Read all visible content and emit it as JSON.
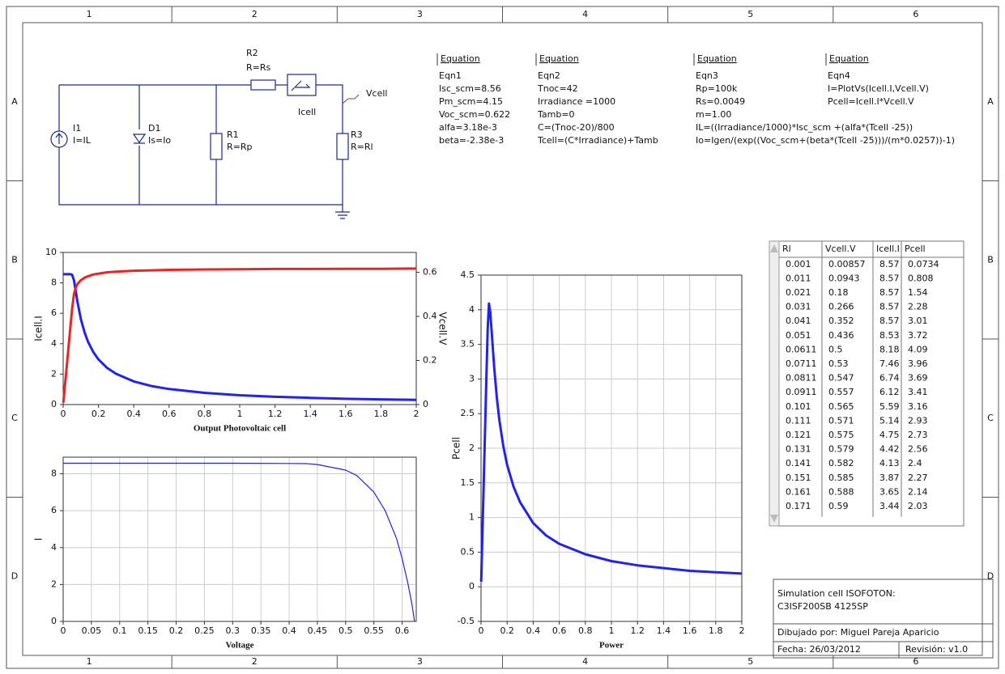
{
  "frame": {
    "columns": [
      "1",
      "2",
      "3",
      "4",
      "5",
      "6"
    ],
    "rows": [
      "A",
      "B",
      "C",
      "D"
    ]
  },
  "schematic": {
    "r2": {
      "name": "R2",
      "value": "R=Rs"
    },
    "ammeter": {
      "name": "Icell"
    },
    "probe": {
      "name": "Vcell"
    },
    "i1": {
      "name": "I1",
      "value": "I=IL"
    },
    "d1": {
      "name": "D1",
      "value": "Is=Io"
    },
    "r1": {
      "name": "R1",
      "value": "R=Rp"
    },
    "r3": {
      "name": "R3",
      "value": "R=Rl"
    }
  },
  "equations": [
    {
      "header": "Equation",
      "name": "Eqn1",
      "lines": [
        "Isc_scm=8.56",
        "Pm_scm=4.15",
        "Voc_scm=0.622",
        "alfa=3.18e-3",
        "beta=-2.38e-3"
      ]
    },
    {
      "header": "Equation",
      "name": "Eqn2",
      "lines": [
        "Tnoc=42",
        "Irradiance =1000",
        "Tamb=0",
        "C=(Tnoc-20)/800",
        "Tcell=(C*Irradiance)+Tamb"
      ]
    },
    {
      "header": "Equation",
      "name": "Eqn3",
      "lines": [
        "Rp=100k",
        "Rs=0.0049",
        "m=1.00",
        "IL=((Irradiance/1000)*Isc_scm +(alfa*(Tcell -25))",
        "Io=Igen/(exp((Voc_scm+(beta*(Tcell -25)))/(m*0.0257))-1)"
      ]
    },
    {
      "header": "Equation",
      "name": "Eqn4",
      "lines": [
        "I=PlotVs(Icell.I,Vcell.V)",
        "Pcell=Icell.I*Vcell.V"
      ]
    }
  ],
  "chart_data": [
    {
      "type": "line",
      "xlabel": "Output Photovoltaic cell",
      "ylabel": "Icell.I",
      "y2label": "Vcell.V",
      "x": [
        0.001,
        0.021,
        0.041,
        0.051,
        0.0611,
        0.0711,
        0.0811,
        0.101,
        0.121,
        0.141,
        0.171,
        0.2,
        0.25,
        0.3,
        0.4,
        0.5,
        0.6,
        0.8,
        1,
        1.2,
        1.4,
        1.6,
        1.8,
        2
      ],
      "series": [
        {
          "name": "Icell.I",
          "color": "#2222ee",
          "values": [
            8.57,
            8.57,
            8.57,
            8.53,
            8.18,
            7.46,
            6.74,
            5.59,
            4.75,
            4.13,
            3.44,
            2.97,
            2.4,
            2.02,
            1.52,
            1.22,
            1.02,
            0.77,
            0.61,
            0.51,
            0.44,
            0.38,
            0.34,
            0.31
          ]
        },
        {
          "name": "Vcell.V",
          "color": "#ee2222",
          "axis": "y2",
          "values": [
            0.00857,
            0.18,
            0.352,
            0.436,
            0.5,
            0.53,
            0.547,
            0.565,
            0.575,
            0.582,
            0.59,
            0.594,
            0.6,
            0.603,
            0.607,
            0.609,
            0.611,
            0.613,
            0.614,
            0.615,
            0.615,
            0.616,
            0.616,
            0.617
          ]
        }
      ],
      "xlim": [
        0,
        2
      ],
      "xticks": [
        0,
        0.2,
        0.4,
        0.6,
        0.8,
        1,
        1.2,
        1.4,
        1.6,
        1.8,
        2
      ],
      "ylim": [
        0,
        10
      ],
      "yticks": [
        0,
        2,
        4,
        6,
        8,
        10
      ],
      "y2lim": [
        0,
        0.69
      ],
      "y2ticks": [
        0,
        0.2,
        0.4,
        0.6
      ],
      "grid": false
    },
    {
      "type": "line",
      "xlabel": "Voltage",
      "ylabel": "I",
      "x": [
        0,
        0.1,
        0.2,
        0.3,
        0.4,
        0.43,
        0.45,
        0.5,
        0.52,
        0.55,
        0.57,
        0.59,
        0.6,
        0.61,
        0.617,
        0.622
      ],
      "series": [
        {
          "name": "I",
          "color": "#2222ee",
          "values": [
            8.57,
            8.57,
            8.57,
            8.57,
            8.56,
            8.55,
            8.5,
            8.2,
            7.9,
            7,
            6,
            4.5,
            3.4,
            2.1,
            1,
            0
          ]
        }
      ],
      "xlim": [
        0,
        0.625
      ],
      "xticks": [
        0,
        0.05,
        0.1,
        0.15,
        0.2,
        0.25,
        0.3,
        0.35,
        0.4,
        0.45,
        0.5,
        0.55,
        0.6
      ],
      "ylim": [
        0,
        8.9
      ],
      "yticks": [
        0,
        2,
        4,
        6,
        8
      ],
      "grid": true
    },
    {
      "type": "line",
      "xlabel": "Power",
      "ylabel": "Pcell",
      "x": [
        0.001,
        0.011,
        0.021,
        0.031,
        0.041,
        0.051,
        0.0611,
        0.0711,
        0.0811,
        0.101,
        0.121,
        0.141,
        0.171,
        0.2,
        0.25,
        0.3,
        0.4,
        0.5,
        0.6,
        0.8,
        1,
        1.2,
        1.4,
        1.6,
        1.8,
        2
      ],
      "series": [
        {
          "name": "Pcell",
          "color": "#2222ee",
          "values": [
            0.0734,
            0.808,
            1.54,
            2.28,
            3.01,
            3.72,
            4.09,
            3.96,
            3.69,
            3.16,
            2.73,
            2.4,
            2.03,
            1.76,
            1.44,
            1.22,
            0.92,
            0.74,
            0.62,
            0.47,
            0.37,
            0.31,
            0.27,
            0.23,
            0.21,
            0.19
          ]
        }
      ],
      "xlim": [
        0,
        2
      ],
      "xticks": [
        0,
        0.2,
        0.4,
        0.6,
        0.8,
        1,
        1.2,
        1.4,
        1.6,
        1.8,
        2
      ],
      "ylim": [
        -0.5,
        4.5
      ],
      "yticks": [
        -0.5,
        0,
        0.5,
        1,
        1.5,
        2,
        2.5,
        3,
        3.5,
        4,
        4.5
      ],
      "grid": true
    }
  ],
  "table": {
    "header": [
      "Rl",
      "Vcell.V",
      "Icell.I",
      "Pcell"
    ],
    "rows": [
      [
        "0.001",
        "0.00857",
        "8.57",
        "0.0734"
      ],
      [
        "0.011",
        "0.0943",
        "8.57",
        "0.808"
      ],
      [
        "0.021",
        "0.18",
        "8.57",
        "1.54"
      ],
      [
        "0.031",
        "0.266",
        "8.57",
        "2.28"
      ],
      [
        "0.041",
        "0.352",
        "8.57",
        "3.01"
      ],
      [
        "0.051",
        "0.436",
        "8.53",
        "3.72"
      ],
      [
        "0.0611",
        "0.5",
        "8.18",
        "4.09"
      ],
      [
        "0.0711",
        "0.53",
        "7.46",
        "3.96"
      ],
      [
        "0.0811",
        "0.547",
        "6.74",
        "3.69"
      ],
      [
        "0.0911",
        "0.557",
        "6.12",
        "3.41"
      ],
      [
        "0.101",
        "0.565",
        "5.59",
        "3.16"
      ],
      [
        "0.111",
        "0.571",
        "5.14",
        "2.93"
      ],
      [
        "0.121",
        "0.575",
        "4.75",
        "2.73"
      ],
      [
        "0.131",
        "0.579",
        "4.42",
        "2.56"
      ],
      [
        "0.141",
        "0.582",
        "4.13",
        "2.4"
      ],
      [
        "0.151",
        "0.585",
        "3.87",
        "2.27"
      ],
      [
        "0.161",
        "0.588",
        "3.65",
        "2.14"
      ],
      [
        "0.171",
        "0.59",
        "3.44",
        "2.03"
      ]
    ]
  },
  "title_block": {
    "title": [
      "Simulation cell ISOFOTON:",
      "C3ISF200SB 4125SP"
    ],
    "author": "Dibujado por: Miguel Pareja Aparicio",
    "date": "Fecha: 26/03/2012",
    "revision": "Revisión: v1.0"
  }
}
